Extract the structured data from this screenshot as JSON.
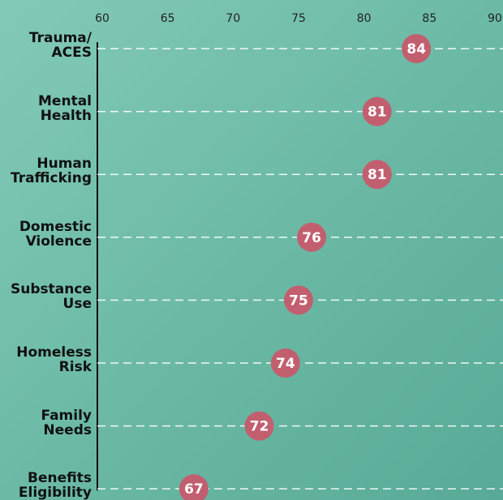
{
  "chart_data": {
    "type": "dot",
    "categories": [
      "Trauma/ ACES",
      "Mental Health",
      "Human Trafficking",
      "Domestic Violence",
      "Substance Use",
      "Homeless Risk",
      "Family Needs",
      "Benefits Eligibility"
    ],
    "values": [
      84,
      81,
      81,
      76,
      75,
      74,
      72,
      67
    ],
    "color": "#c25f6f",
    "xlim": [
      60,
      90
    ],
    "xticks": [
      60,
      65,
      70,
      75,
      80,
      85,
      90
    ],
    "grid": true
  }
}
